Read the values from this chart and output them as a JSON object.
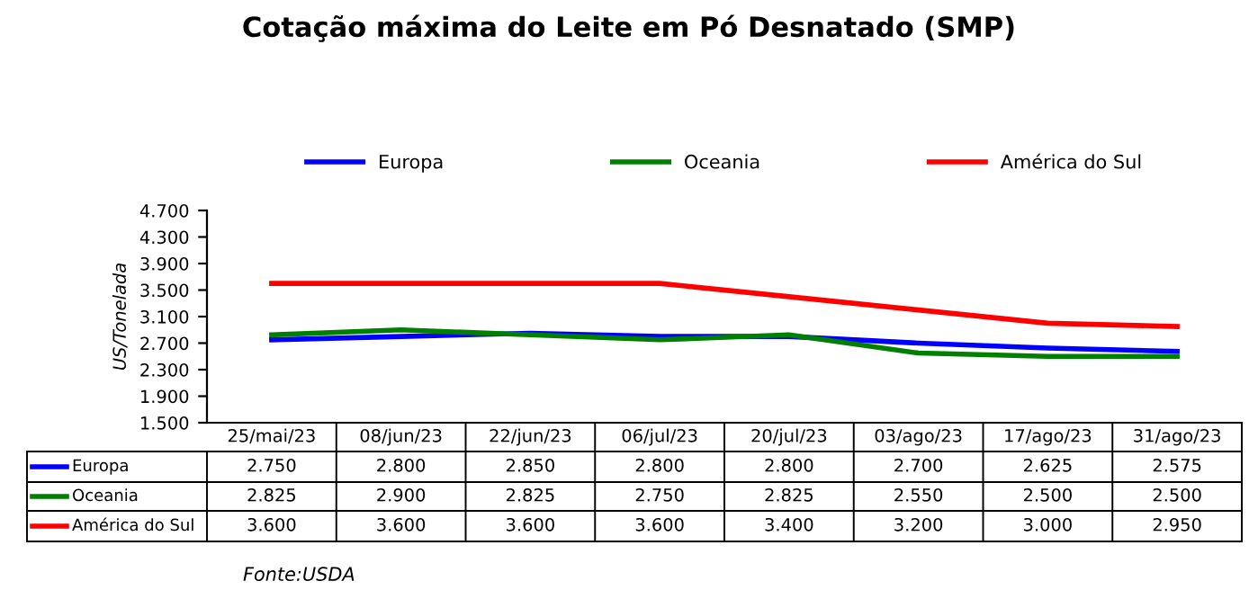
{
  "chart_data": {
    "type": "line",
    "title": "Cotação máxima do Leite em Pó Desnatado (SMP)",
    "ylabel": "US/Tonelada",
    "categories": [
      "25/mai/23",
      "08/jun/23",
      "22/jun/23",
      "06/jul/23",
      "20/jul/23",
      "03/ago/23",
      "17/ago/23",
      "31/ago/23"
    ],
    "series": [
      {
        "name": "Europa",
        "color": "#0000ff",
        "values": [
          2750,
          2800,
          2850,
          2800,
          2800,
          2700,
          2625,
          2575
        ],
        "value_labels": [
          "2.750",
          "2.800",
          "2.850",
          "2.800",
          "2.800",
          "2.700",
          "2.625",
          "2.575"
        ]
      },
      {
        "name": "Oceania",
        "color": "#008000",
        "values": [
          2825,
          2900,
          2825,
          2750,
          2825,
          2550,
          2500,
          2500
        ],
        "value_labels": [
          "2.825",
          "2.900",
          "2.825",
          "2.750",
          "2.825",
          "2.550",
          "2.500",
          "2.500"
        ]
      },
      {
        "name": "América do Sul",
        "color": "#ff0000",
        "values": [
          3600,
          3600,
          3600,
          3600,
          3400,
          3200,
          3000,
          2950
        ],
        "value_labels": [
          "3.600",
          "3.600",
          "3.600",
          "3.600",
          "3.400",
          "3.200",
          "3.000",
          "2.950"
        ]
      }
    ],
    "ylim": [
      1500,
      4700
    ],
    "yticks": [
      {
        "value": 1500,
        "label": "1.500"
      },
      {
        "value": 1900,
        "label": "1.900"
      },
      {
        "value": 2300,
        "label": "2.300"
      },
      {
        "value": 2700,
        "label": "2.700"
      },
      {
        "value": 3100,
        "label": "3.100"
      },
      {
        "value": 3500,
        "label": "3.500"
      },
      {
        "value": 3900,
        "label": "3.900"
      },
      {
        "value": 4300,
        "label": "4.300"
      },
      {
        "value": 4700,
        "label": "4.700"
      }
    ],
    "grid": false,
    "legend": "top",
    "marker": "none",
    "line_style": "solid",
    "annotations": [
      "Fonte:USDA"
    ]
  }
}
